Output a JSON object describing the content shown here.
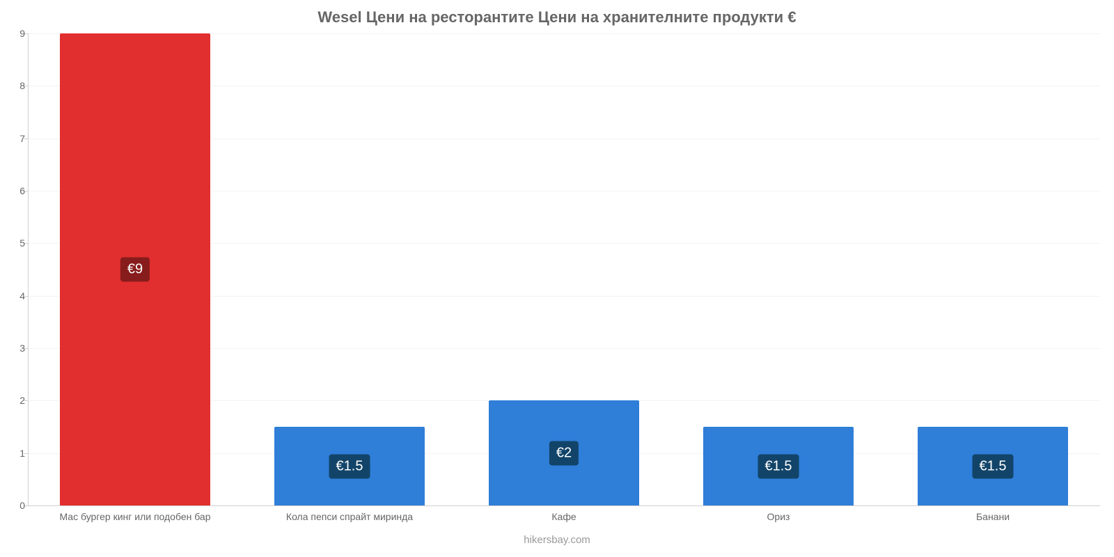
{
  "chart": {
    "type": "bar",
    "title": "Wesel Цени на ресторантите Цени на хранителните продукти €",
    "title_fontsize": 22,
    "title_color": "#666666",
    "subtitle": "hikersbay.com",
    "subtitle_color": "#999999",
    "background_color": "#ffffff",
    "grid_color": "#f3f3f3",
    "axis_color": "#d0d0d0",
    "tick_color": "#666666",
    "tick_fontsize": 14,
    "bar_width_pct": 70,
    "y": {
      "min": 0,
      "max": 9,
      "ticks": [
        0,
        1,
        2,
        3,
        4,
        5,
        6,
        7,
        8,
        9
      ]
    },
    "categories": [
      "Мас бургер кинг или подобен бар",
      "Кола пепси спрайт миринда",
      "Кафе",
      "Ориз",
      "Банани"
    ],
    "values": [
      9,
      1.5,
      2,
      1.5,
      1.5
    ],
    "value_labels": [
      "€9",
      "€1.5",
      "€2",
      "€1.5",
      "€1.5"
    ],
    "bar_colors": [
      "#e12e2e",
      "#2f7ed8",
      "#2f7ed8",
      "#2f7ed8",
      "#2f7ed8"
    ],
    "tooltip_bg_colors": [
      "#871c1c",
      "#124469",
      "#124469",
      "#124469",
      "#124469"
    ],
    "tooltip_text_color": "#ffffff",
    "tooltip_fontsize": 20
  }
}
